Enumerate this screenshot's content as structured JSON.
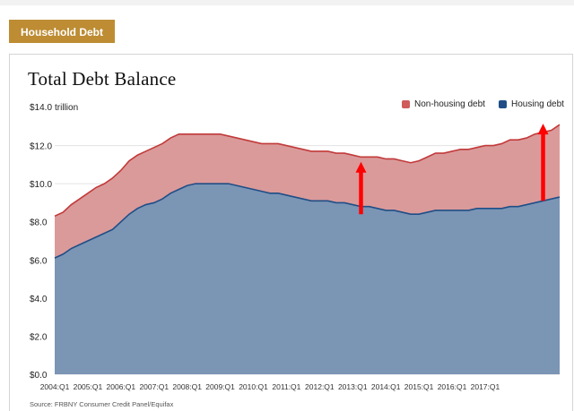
{
  "header": {
    "tab_label": "Household Debt"
  },
  "chart_data": {
    "type": "area",
    "title": "Total Debt Balance",
    "unit_label": "trillion",
    "ylim": [
      0,
      14
    ],
    "y_ticks": [
      {
        "value": 0,
        "label": "$0.0"
      },
      {
        "value": 2,
        "label": "$2.0"
      },
      {
        "value": 4,
        "label": "$4.0"
      },
      {
        "value": 6,
        "label": "$6.0"
      },
      {
        "value": 8,
        "label": "$8.0"
      },
      {
        "value": 10,
        "label": "$10.0"
      },
      {
        "value": 12,
        "label": "$12.0"
      },
      {
        "value": 14,
        "label": "$14.0"
      }
    ],
    "x_ticks": [
      "2004:Q1",
      "2005:Q1",
      "2006:Q1",
      "2007:Q1",
      "2008:Q1",
      "2009:Q1",
      "2010:Q1",
      "2011:Q1",
      "2012:Q1",
      "2013:Q1",
      "2014:Q1",
      "2015:Q1",
      "2016:Q1",
      "2017:Q1"
    ],
    "x_start": "2004:Q1",
    "x_end": "2017:Q4",
    "stacked": true,
    "legend_position": "top-right",
    "series": [
      {
        "name": "Housing debt",
        "color": "#1f4e86",
        "fill": "#7b95b5",
        "values": [
          6.1,
          6.3,
          6.6,
          6.8,
          7.0,
          7.2,
          7.4,
          7.6,
          8.0,
          8.4,
          8.7,
          8.9,
          9.0,
          9.2,
          9.5,
          9.7,
          9.9,
          10.0,
          10.0,
          10.0,
          10.0,
          10.0,
          9.9,
          9.8,
          9.7,
          9.6,
          9.5,
          9.5,
          9.4,
          9.3,
          9.2,
          9.1,
          9.1,
          9.1,
          9.0,
          9.0,
          8.9,
          8.8,
          8.8,
          8.7,
          8.6,
          8.6,
          8.5,
          8.4,
          8.4,
          8.5,
          8.6,
          8.6,
          8.6,
          8.6,
          8.6,
          8.7,
          8.7,
          8.7,
          8.7,
          8.8,
          8.8,
          8.9,
          9.0,
          9.1,
          9.2,
          9.3
        ]
      },
      {
        "name": "Non-housing debt",
        "color": "#c23a3a",
        "fill": "#da9a9a",
        "values": [
          2.2,
          2.2,
          2.3,
          2.4,
          2.5,
          2.6,
          2.6,
          2.7,
          2.7,
          2.8,
          2.8,
          2.8,
          2.9,
          2.9,
          2.9,
          2.9,
          2.7,
          2.6,
          2.6,
          2.6,
          2.6,
          2.5,
          2.5,
          2.5,
          2.5,
          2.5,
          2.6,
          2.6,
          2.6,
          2.6,
          2.6,
          2.6,
          2.6,
          2.6,
          2.6,
          2.6,
          2.6,
          2.6,
          2.6,
          2.7,
          2.7,
          2.7,
          2.7,
          2.7,
          2.8,
          2.9,
          3.0,
          3.0,
          3.1,
          3.2,
          3.2,
          3.2,
          3.3,
          3.3,
          3.4,
          3.5,
          3.5,
          3.5,
          3.6,
          3.6,
          3.6,
          3.8
        ]
      }
    ],
    "annotations": [
      {
        "type": "arrow",
        "color": "#ff0000",
        "x_index": 37,
        "y_from": 8.4,
        "y_to": 11.1
      },
      {
        "type": "arrow",
        "color": "#ff0000",
        "x_index": 59,
        "y_from": 9.1,
        "y_to": 13.1
      }
    ],
    "grid": true,
    "source": "Source: FRBNY Consumer Credit Panel/Equifax"
  }
}
